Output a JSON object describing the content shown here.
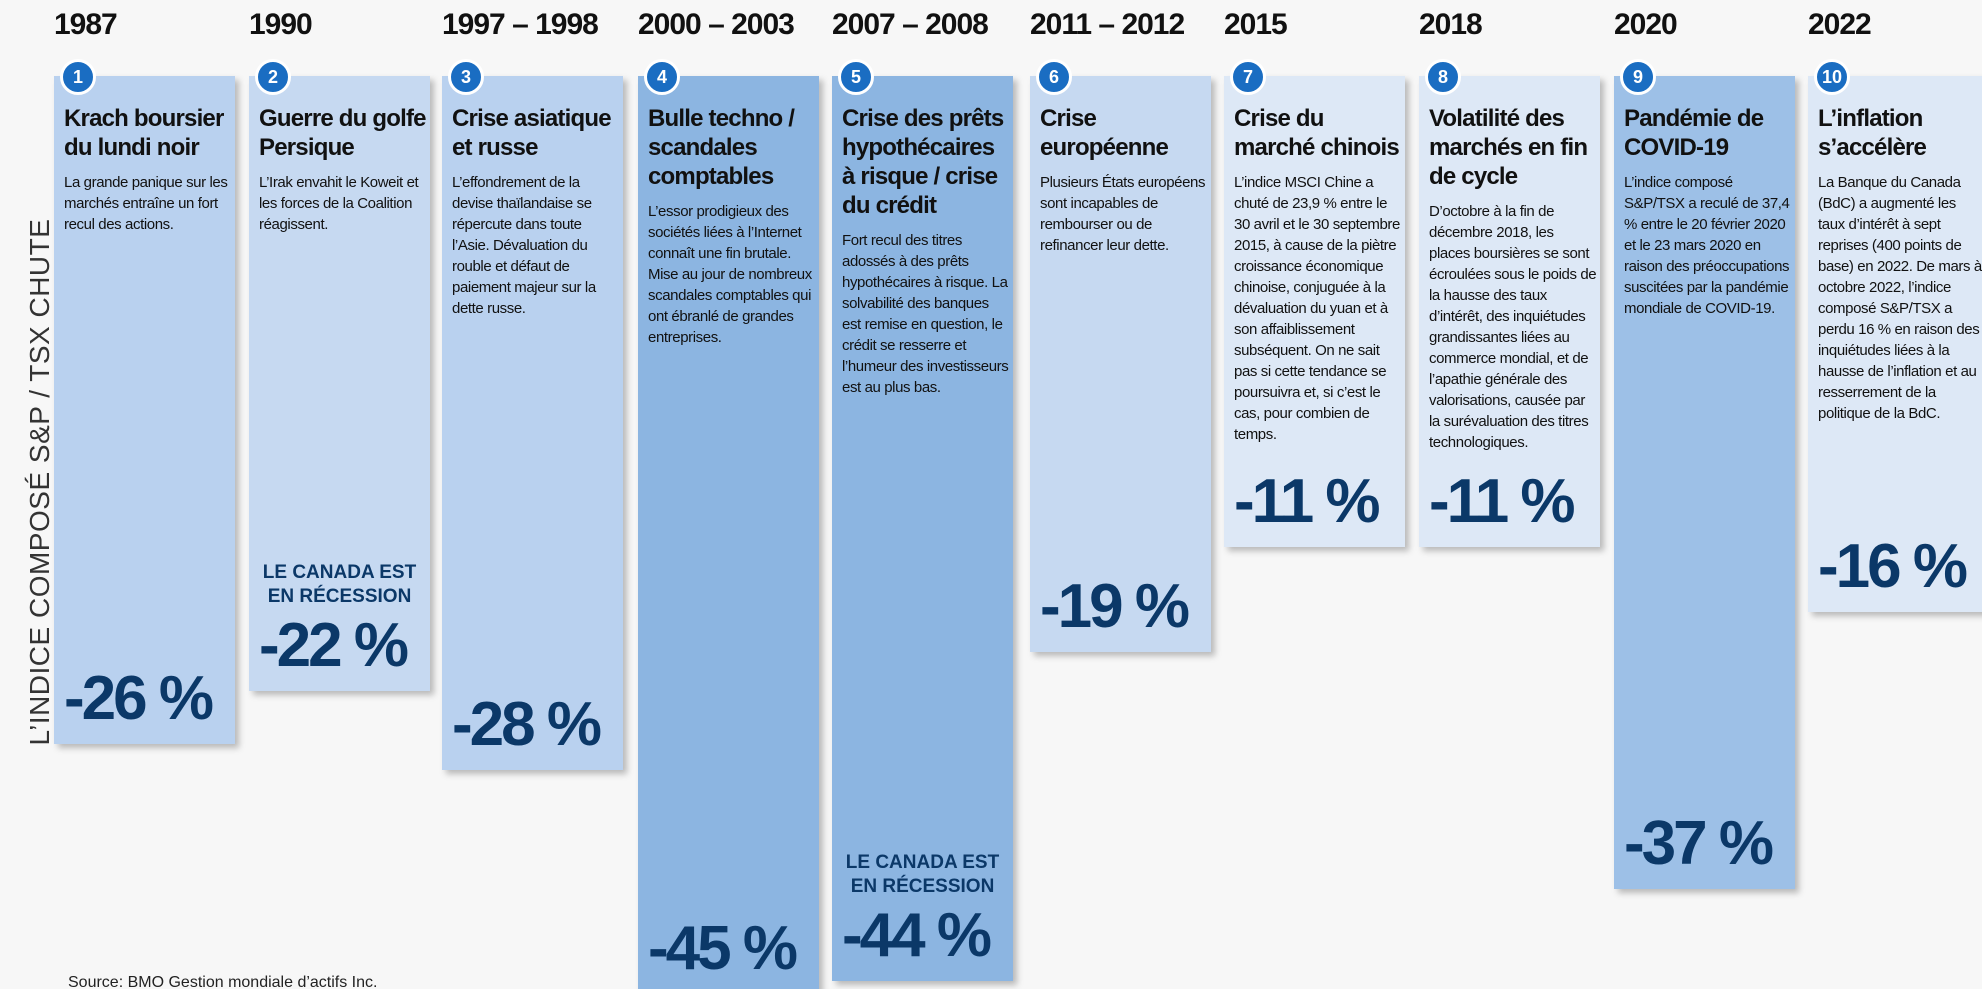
{
  "chart_data": {
    "type": "bar",
    "y_label": "L’INDICE COMPOSÉ S&P / TSX CHUTE",
    "source": "Source: BMO Gestion mondiale d’actifs Inc.",
    "categories": [
      "1987",
      "1990",
      "1997 – 1998",
      "2000 – 2003",
      "2007 – 2008",
      "2011 – 2012",
      "2015",
      "2018",
      "2020",
      "2022"
    ],
    "values": [
      -26,
      -22,
      -28,
      -45,
      -44,
      -19,
      -11,
      -11,
      -37,
      -16
    ],
    "value_labels": [
      "-26 %",
      "-22 %",
      "-28 %",
      "-45 %",
      "-44 %",
      "-19 %",
      "-11 %",
      "-11 %",
      "-37 %",
      "-16 %"
    ],
    "colors": [
      "#b9d1ef",
      "#c6d9f1",
      "#b9d1ef",
      "#8cb5e1",
      "#8cb5e1",
      "#c6d9f1",
      "#dde8f6",
      "#dde8f6",
      "#9dc0e7",
      "#dde8f6"
    ],
    "numbers": [
      1,
      2,
      3,
      4,
      5,
      6,
      7,
      8,
      9,
      10
    ],
    "titles": [
      "Krach boursier du lundi noir",
      "Guerre du golfe Persique",
      "Crise asiatique et russe",
      "Bulle techno / scandales comptables",
      "Crise des prêts hypothécaires à risque / crise du crédit",
      "Crise européenne",
      "Crise du marché chinois",
      "Volatilité des marchés en fin de cycle",
      "Pandémie de COVID-19",
      "L’inflation s’accélère"
    ],
    "descriptions": [
      "La grande panique sur les marchés entraîne un fort recul des actions.",
      "L’Irak envahit le Koweit et les forces de la Coalition réagissent.",
      "L’effondrement de la devise thaïlandaise se répercute dans toute l’Asie. Dévaluation du rouble et défaut de paiement majeur sur la dette russe.",
      "L’essor prodigieux des sociétés liées à l’Internet connaît une fin brutale. Mise au jour de nombreux scandales comptables qui ont ébranlé de grandes entreprises.",
      "Fort recul des titres adossés à des prêts hypothécaires à risque. La solvabilité des banques est remise en question, le crédit se resserre et l’humeur des investisseurs est au plus bas.",
      "Plusieurs États européens sont incapables de rembourser ou de refinancer leur dette.",
      "L’indice MSCI Chine a chuté de 23,9 % entre le 30 avril et le 30 septembre 2015, à cause de la piètre croissance économique chinoise, conjuguée à la dévaluation du yuan et à son affaiblissement subséquent. On ne sait pas si cette tendance se poursuivra et, si c’est le cas, pour combien de temps.",
      "D’octobre à la fin de décembre 2018, les places boursières se sont écroulées sous le poids de la hausse des taux d’intérêt, des inquiétudes grandissantes liées au commerce mondial, et de l’apathie générale des valorisations, causée par la surévaluation des titres technologiques.",
      "L’indice composé S&P/TSX a reculé de 37,4 % entre le 20 février 2020 et le 23 mars 2020 en raison des préoccupations suscitées par la pandémie mondiale de COVID-19.",
      "La Banque du Canada (BdC) a augmenté les taux d’intérêt à sept reprises (400 points de base) en 2022. De mars à octobre 2022, l’indice composé S&P/TSX a perdu 16 % en raison des inquiétudes liées à la hausse de l’inflation et au resserrement de la politique de la BdC."
    ],
    "notes": [
      {
        "index": 1,
        "text": "LE CANADA EST EN RÉCESSION"
      },
      {
        "index": 4,
        "text": "LE CANADA EST EN RÉCESSION"
      }
    ]
  }
}
